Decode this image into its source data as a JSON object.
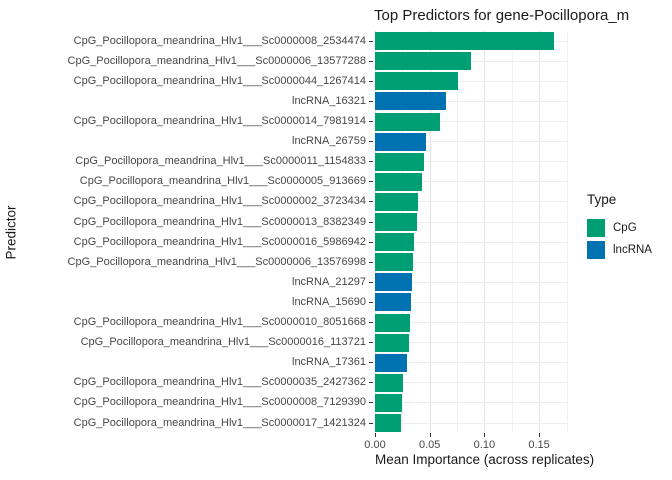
{
  "title": "Top Predictors for gene-Pocillopora_m",
  "chart_data": {
    "type": "bar",
    "orientation": "horizontal",
    "title": "Top Predictors for gene-Pocillopora_m",
    "xlabel": "Mean Importance (across replicates)",
    "ylabel": "Predictor",
    "xlim": [
      0,
      0.1755
    ],
    "x_ticks": [
      0,
      0.05,
      0.1,
      0.15
    ],
    "x_tick_labels": [
      "0.00",
      "0.05",
      "0.10",
      "0.15"
    ],
    "x_minor_gridlines": [
      0.025,
      0.075,
      0.125,
      0.175
    ],
    "grid": true,
    "legend_position": "right",
    "legend": {
      "title": "Type",
      "entries": [
        {
          "label": "CpG",
          "color": "#009E73"
        },
        {
          "label": "lncRNA",
          "color": "#0072B2"
        }
      ]
    },
    "bars": [
      {
        "label": "CpG_Pocillopora_meandrina_Hlv1___Sc0000008_2534474",
        "value": 0.164,
        "type": "CpG"
      },
      {
        "label": "CpG_Pocillopora_meandrina_Hlv1___Sc0000006_13577288",
        "value": 0.088,
        "type": "CpG"
      },
      {
        "label": "CpG_Pocillopora_meandrina_Hlv1___Sc0000044_1267414",
        "value": 0.076,
        "type": "CpG"
      },
      {
        "label": "lncRNA_16321",
        "value": 0.065,
        "type": "lncRNA"
      },
      {
        "label": "CpG_Pocillopora_meandrina_Hlv1___Sc0000014_7981914",
        "value": 0.059,
        "type": "CpG"
      },
      {
        "label": "lncRNA_26759",
        "value": 0.047,
        "type": "lncRNA"
      },
      {
        "label": "CpG_Pocillopora_meandrina_Hlv1___Sc0000011_1154833",
        "value": 0.045,
        "type": "CpG"
      },
      {
        "label": "CpG_Pocillopora_meandrina_Hlv1___Sc0000005_913669",
        "value": 0.043,
        "type": "CpG"
      },
      {
        "label": "CpG_Pocillopora_meandrina_Hlv1___Sc0000002_3723434",
        "value": 0.039,
        "type": "CpG"
      },
      {
        "label": "CpG_Pocillopora_meandrina_Hlv1___Sc0000013_8382349",
        "value": 0.038,
        "type": "CpG"
      },
      {
        "label": "CpG_Pocillopora_meandrina_Hlv1___Sc0000016_5986942",
        "value": 0.036,
        "type": "CpG"
      },
      {
        "label": "CpG_Pocillopora_meandrina_Hlv1___Sc0000006_13576998",
        "value": 0.035,
        "type": "CpG"
      },
      {
        "label": "lncRNA_21297",
        "value": 0.034,
        "type": "lncRNA"
      },
      {
        "label": "lncRNA_15690",
        "value": 0.033,
        "type": "lncRNA"
      },
      {
        "label": "CpG_Pocillopora_meandrina_Hlv1___Sc0000010_8051668",
        "value": 0.032,
        "type": "CpG"
      },
      {
        "label": "CpG_Pocillopora_meandrina_Hlv1___Sc0000016_113721",
        "value": 0.031,
        "type": "CpG"
      },
      {
        "label": "lncRNA_17361",
        "value": 0.029,
        "type": "lncRNA"
      },
      {
        "label": "CpG_Pocillopora_meandrina_Hlv1___Sc0000035_2427362",
        "value": 0.026,
        "type": "CpG"
      },
      {
        "label": "CpG_Pocillopora_meandrina_Hlv1___Sc0000008_7129390",
        "value": 0.025,
        "type": "CpG"
      },
      {
        "label": "CpG_Pocillopora_meandrina_Hlv1___Sc0000017_1421324",
        "value": 0.024,
        "type": "CpG"
      }
    ],
    "colors": {
      "CpG": "#009E73",
      "lncRNA": "#0072B2",
      "grid_major": "#e3e3e3",
      "grid_minor": "#f1f1f1",
      "axis_text": "#474747",
      "title_text": "#1a1a1a"
    }
  }
}
